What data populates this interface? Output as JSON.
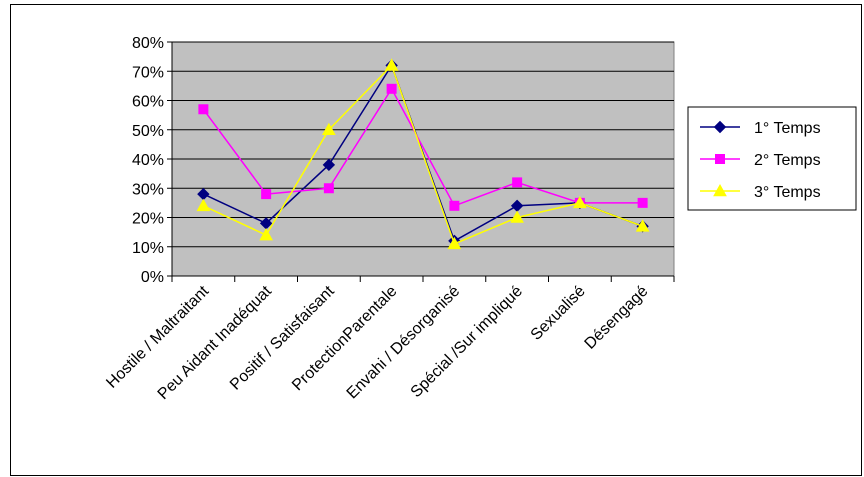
{
  "chart_data": {
    "type": "line",
    "categories": [
      "Hostile / Maltraitant",
      "Peu Aidant Inadéquat",
      "Positif / Satisfaisant",
      "ProtectionParentale",
      "Envahi / Désorganisé",
      "Spécial /Sur impliqué",
      "Sexualisé",
      "Désengagé"
    ],
    "series": [
      {
        "name": "1° Temps",
        "color": "#000080",
        "marker": "diamond",
        "values": [
          28,
          18,
          38,
          72,
          12,
          24,
          25,
          17
        ]
      },
      {
        "name": "2° Temps",
        "color": "#ff00ff",
        "marker": "square",
        "values": [
          57,
          28,
          30,
          64,
          24,
          32,
          25,
          25
        ]
      },
      {
        "name": "3° Temps",
        "color": "#ffff00",
        "marker": "triangle",
        "values": [
          24,
          14,
          50,
          72,
          11,
          20,
          25,
          17
        ]
      }
    ],
    "y_ticks": [
      "0%",
      "10%",
      "20%",
      "30%",
      "40%",
      "50%",
      "60%",
      "70%",
      "80%"
    ],
    "ylim": [
      0,
      80
    ],
    "y_unit": "%",
    "grid": true,
    "plot_background": "#c0c0c0",
    "legend_position": "right"
  }
}
